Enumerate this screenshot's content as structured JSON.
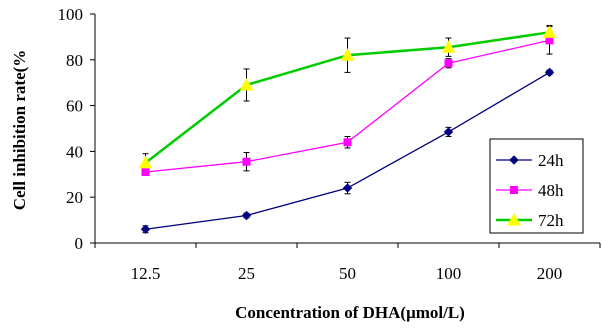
{
  "chart_data": {
    "type": "line",
    "categories": [
      "12.5",
      "25",
      "50",
      "100",
      "200"
    ],
    "xlabel": "Concentration of DHA(μmol/L)",
    "ylabel": "Cell inhibition rate(%",
    "ylim": [
      0,
      100
    ],
    "yticks": [
      "0",
      "20",
      "40",
      "60",
      "80",
      "100"
    ],
    "grid": false,
    "legend_position": "right",
    "series": [
      {
        "name": "24h",
        "values": [
          6,
          12,
          24,
          48.5,
          74.5
        ],
        "errors": [
          1.5,
          1,
          2.5,
          2,
          1
        ],
        "color": "#000080",
        "marker": "diamond"
      },
      {
        "name": "48h",
        "values": [
          31,
          35.5,
          44,
          78.5,
          88.5
        ],
        "errors": [
          1,
          4,
          2.5,
          2,
          6
        ],
        "color": "#ff00ff",
        "marker": "square"
      },
      {
        "name": "72h",
        "values": [
          35,
          69,
          82,
          85.5,
          92
        ],
        "errors": [
          4,
          7,
          7.5,
          4,
          3
        ],
        "color": "#00cc00",
        "markerColor": "#ffff00",
        "marker": "triangle"
      }
    ]
  }
}
